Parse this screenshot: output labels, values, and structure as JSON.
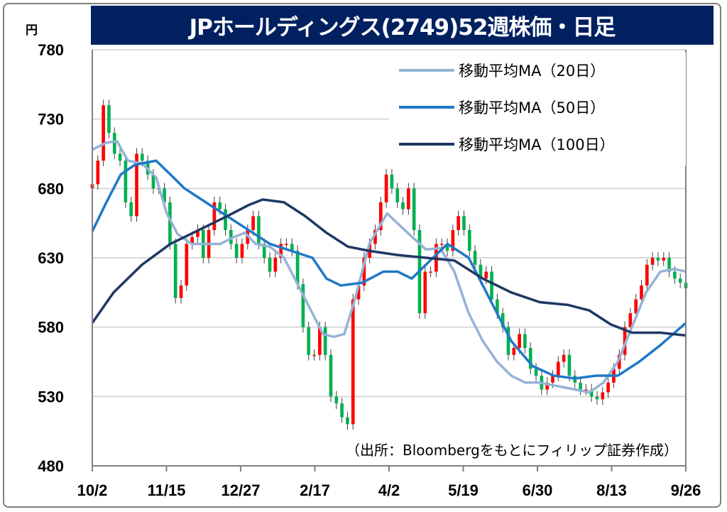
{
  "chart_data": {
    "type": "line",
    "title": "JPホールディングス(2749)52週株価・日足",
    "ylabel": "円",
    "ylim": [
      480,
      780
    ],
    "yticks": [
      "780",
      "730",
      "680",
      "630",
      "580",
      "530",
      "480"
    ],
    "ytick_values": [
      780,
      730,
      680,
      630,
      580,
      530,
      480
    ],
    "xlim": [
      0,
      240
    ],
    "xticks": [
      "10/2",
      "11/15",
      "12/27",
      "2/17",
      "4/2",
      "5/19",
      "6/30",
      "8/13",
      "9/26"
    ],
    "grid": true,
    "legend_position": "top-right",
    "source": "（出所：Bloombergをもとにフィリップ証券作成）",
    "colors": {
      "up": "#ff0000",
      "down": "#00b050",
      "ma20": "#95b3d7",
      "ma50": "#1f78c8",
      "ma100": "#1f3864",
      "title_bg": "#002060"
    },
    "candles_close": [
      683,
      700,
      740,
      720,
      705,
      700,
      670,
      660,
      705,
      700,
      690,
      680,
      680,
      670,
      640,
      601,
      610,
      640,
      645,
      650,
      630,
      650,
      670,
      665,
      650,
      640,
      630,
      640,
      650,
      660,
      640,
      630,
      620,
      630,
      640,
      640,
      635,
      611,
      580,
      560,
      560,
      580,
      560,
      530,
      525,
      515,
      510,
      600,
      610,
      630,
      640,
      650,
      670,
      690,
      680,
      670,
      665,
      680,
      650,
      590,
      620,
      620,
      640,
      640,
      635,
      650,
      660,
      650,
      635,
      625,
      615,
      620,
      600,
      590,
      580,
      560,
      565,
      575,
      565,
      550,
      545,
      535,
      540,
      545,
      555,
      560,
      545,
      540,
      535,
      535,
      530,
      528,
      533,
      540,
      550,
      560,
      580,
      590,
      600,
      610,
      625,
      630,
      628,
      630,
      620,
      615,
      612,
      608
    ],
    "series": [
      {
        "name": "移動平均MA（20日）",
        "key": "ma20",
        "x": [
          0,
          5.7,
          10,
          14.4,
          20.1,
          25.8,
          30.1,
          34.5,
          40.2,
          45.9,
          51.7,
          57.4,
          61.7,
          66,
          71.8,
          77.5,
          83.3,
          89,
          93.3,
          97.6,
          101.9,
          106.2,
          112,
          119.2,
          126.3,
          134.9,
          140.7,
          146.4,
          152.2,
          157.9,
          163.7,
          169.4,
          175.1,
          180.9,
          186.6,
          192.4,
          201,
          206.7,
          212.5,
          218.2,
          223.9,
          229.7,
          235.4,
          240
        ],
        "y": [
          708,
          713,
          714,
          700,
          698,
          688,
          662,
          647,
          640,
          640,
          640,
          645,
          648,
          640,
          638,
          630,
          610,
          590,
          575,
          573,
          575,
          600,
          640,
          662,
          650,
          636,
          637,
          620,
          590,
          570,
          555,
          545,
          540,
          540,
          538,
          536,
          533,
          540,
          555,
          580,
          605,
          620,
          622,
          620
        ]
      },
      {
        "name": "移動平均MA（50日）",
        "key": "ma50",
        "x": [
          0,
          5.7,
          11.5,
          17.2,
          25.8,
          31.6,
          37.3,
          45.9,
          54.5,
          63.2,
          71.8,
          80.4,
          89,
          94.7,
          100.5,
          109.1,
          117.7,
          123.5,
          129.2,
          134.9,
          143.6,
          152.2,
          160.8,
          169.4,
          178,
          186.6,
          195.2,
          203.8,
          212.5,
          221.1,
          229.7,
          240
        ],
        "y": [
          649,
          670,
          690,
          697,
          700,
          690,
          680,
          670,
          660,
          650,
          640,
          635,
          630,
          615,
          610,
          612,
          620,
          620,
          615,
          625,
          640,
          630,
          600,
          570,
          552,
          545,
          543,
          545,
          545,
          555,
          567,
          583
        ]
      },
      {
        "name": "移動平均MA（100日）",
        "key": "ma100",
        "x": [
          0,
          8.6,
          20.1,
          31.6,
          43.1,
          54.5,
          63.2,
          68.9,
          77.5,
          86.1,
          94.7,
          103.4,
          112,
          123.5,
          134.9,
          146.4,
          157.9,
          169.4,
          180.9,
          192.4,
          201,
          209.6,
          218.2,
          229.7,
          240
        ],
        "y": [
          583,
          605,
          625,
          640,
          650,
          660,
          668,
          672,
          670,
          660,
          648,
          638,
          635,
          632,
          630,
          628,
          615,
          605,
          598,
          596,
          592,
          582,
          576,
          576,
          574
        ]
      }
    ]
  }
}
